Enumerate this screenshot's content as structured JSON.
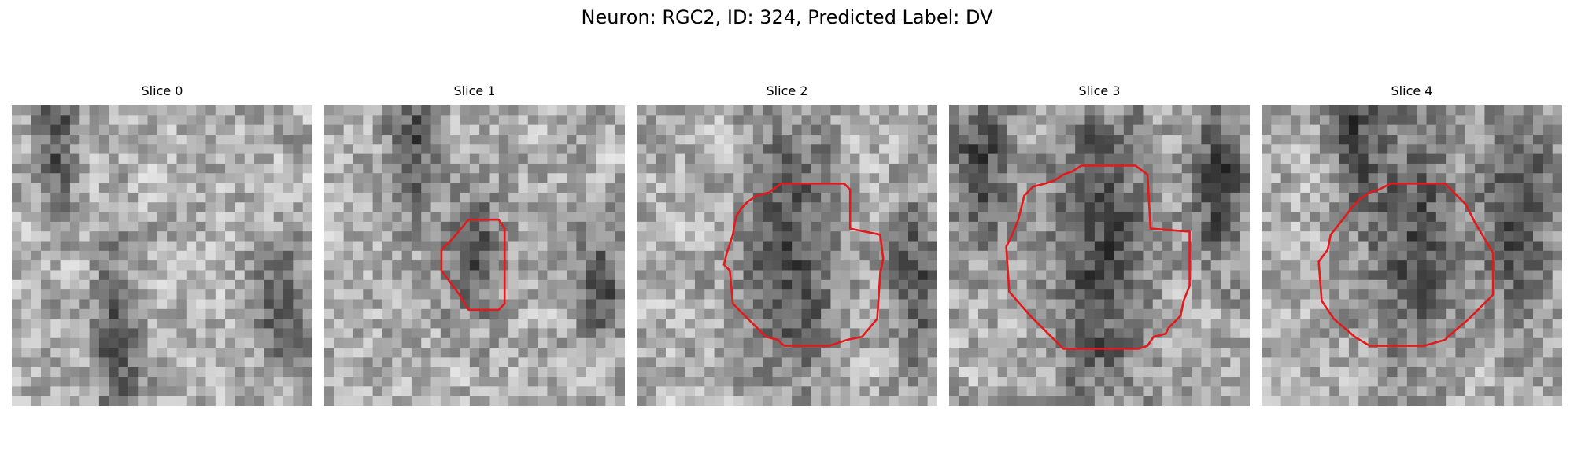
{
  "figure": {
    "title": "Neuron: RGC2, ID: 324, Predicted Label: DV",
    "grid_size": 31,
    "outline_color": "#e31a1c",
    "panels": [
      {
        "title": "Slice 0",
        "seed": 11,
        "dark_regions": [
          [
            0.9,
            0.65,
            0.1,
            0.18
          ],
          [
            0.35,
            0.8,
            0.08,
            0.3
          ],
          [
            0.15,
            0.1,
            0.06,
            0.25
          ]
        ],
        "contour": []
      },
      {
        "title": "Slice 1",
        "seed": 23,
        "dark_regions": [
          [
            0.92,
            0.6,
            0.09,
            0.2
          ],
          [
            0.5,
            0.5,
            0.1,
            0.2
          ],
          [
            0.3,
            0.12,
            0.08,
            0.22
          ]
        ],
        "contour": [
          [
            0.48,
            0.38
          ],
          [
            0.58,
            0.38
          ],
          [
            0.6,
            0.41
          ],
          [
            0.6,
            0.66
          ],
          [
            0.58,
            0.68
          ],
          [
            0.48,
            0.68
          ],
          [
            0.45,
            0.63
          ],
          [
            0.39,
            0.55
          ],
          [
            0.39,
            0.48
          ],
          [
            0.43,
            0.44
          ]
        ]
      },
      {
        "title": "Slice 2",
        "seed": 37,
        "dark_regions": [
          [
            0.52,
            0.5,
            0.16,
            0.45
          ],
          [
            0.93,
            0.6,
            0.08,
            0.3
          ]
        ],
        "contour": [
          [
            0.48,
            0.26
          ],
          [
            0.69,
            0.26
          ],
          [
            0.71,
            0.28
          ],
          [
            0.71,
            0.41
          ],
          [
            0.81,
            0.43
          ],
          [
            0.82,
            0.51
          ],
          [
            0.81,
            0.56
          ],
          [
            0.8,
            0.71
          ],
          [
            0.75,
            0.77
          ],
          [
            0.7,
            0.78
          ],
          [
            0.64,
            0.8
          ],
          [
            0.49,
            0.8
          ],
          [
            0.47,
            0.78
          ],
          [
            0.43,
            0.77
          ],
          [
            0.37,
            0.71
          ],
          [
            0.32,
            0.66
          ],
          [
            0.31,
            0.55
          ],
          [
            0.29,
            0.53
          ],
          [
            0.3,
            0.49
          ],
          [
            0.32,
            0.43
          ],
          [
            0.33,
            0.37
          ],
          [
            0.35,
            0.34
          ],
          [
            0.37,
            0.32
          ],
          [
            0.4,
            0.3
          ],
          [
            0.44,
            0.29
          ]
        ]
      },
      {
        "title": "Slice 3",
        "seed": 41,
        "dark_regions": [
          [
            0.5,
            0.5,
            0.18,
            0.55
          ],
          [
            0.1,
            0.2,
            0.12,
            0.3
          ],
          [
            0.9,
            0.25,
            0.1,
            0.3
          ]
        ],
        "contour": [
          [
            0.44,
            0.2
          ],
          [
            0.62,
            0.2
          ],
          [
            0.66,
            0.23
          ],
          [
            0.67,
            0.41
          ],
          [
            0.8,
            0.42
          ],
          [
            0.8,
            0.6
          ],
          [
            0.78,
            0.65
          ],
          [
            0.77,
            0.7
          ],
          [
            0.73,
            0.74
          ],
          [
            0.72,
            0.76
          ],
          [
            0.68,
            0.77
          ],
          [
            0.66,
            0.8
          ],
          [
            0.63,
            0.81
          ],
          [
            0.38,
            0.81
          ],
          [
            0.33,
            0.76
          ],
          [
            0.27,
            0.7
          ],
          [
            0.2,
            0.62
          ],
          [
            0.19,
            0.47
          ],
          [
            0.21,
            0.43
          ],
          [
            0.23,
            0.38
          ],
          [
            0.25,
            0.3
          ],
          [
            0.28,
            0.27
          ],
          [
            0.32,
            0.26
          ],
          [
            0.35,
            0.25
          ],
          [
            0.38,
            0.23
          ],
          [
            0.41,
            0.22
          ]
        ]
      },
      {
        "title": "Slice 4",
        "seed": 53,
        "dark_regions": [
          [
            0.5,
            0.45,
            0.16,
            0.45
          ],
          [
            0.85,
            0.35,
            0.12,
            0.35
          ],
          [
            0.3,
            0.08,
            0.08,
            0.25
          ]
        ],
        "contour": [
          [
            0.43,
            0.26
          ],
          [
            0.61,
            0.26
          ],
          [
            0.68,
            0.33
          ],
          [
            0.71,
            0.39
          ],
          [
            0.77,
            0.49
          ],
          [
            0.77,
            0.63
          ],
          [
            0.69,
            0.71
          ],
          [
            0.62,
            0.77
          ],
          [
            0.61,
            0.78
          ],
          [
            0.54,
            0.8
          ],
          [
            0.36,
            0.8
          ],
          [
            0.31,
            0.77
          ],
          [
            0.24,
            0.71
          ],
          [
            0.2,
            0.65
          ],
          [
            0.19,
            0.52
          ],
          [
            0.22,
            0.48
          ],
          [
            0.23,
            0.43
          ],
          [
            0.27,
            0.38
          ],
          [
            0.3,
            0.34
          ],
          [
            0.33,
            0.31
          ],
          [
            0.36,
            0.29
          ],
          [
            0.39,
            0.28
          ]
        ]
      }
    ]
  }
}
